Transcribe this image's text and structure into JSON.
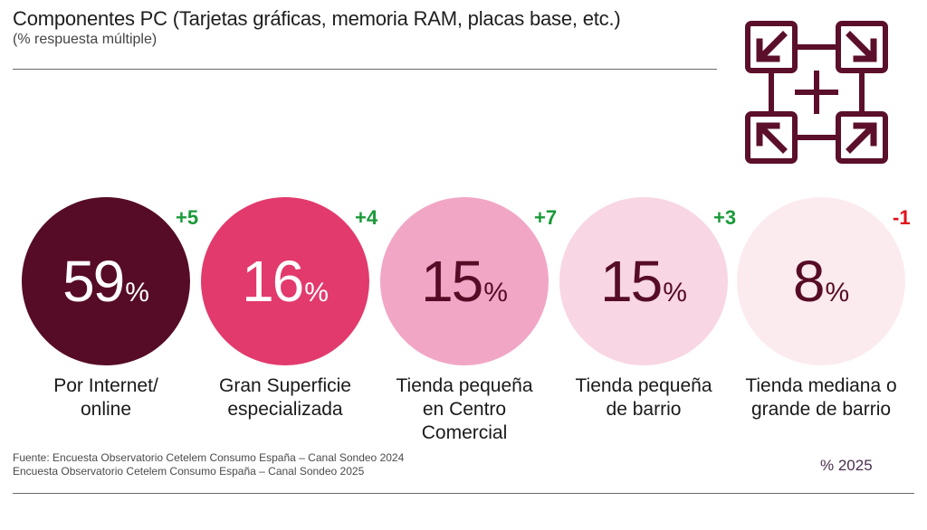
{
  "header": {
    "title": "Componentes PC (Tarjetas gráficas, memoria RAM, placas base, etc.)",
    "subtitle": "(% respuesta múltiple)"
  },
  "logo": {
    "icon": "four-arrows-grid-icon",
    "color": "#5b0f2b"
  },
  "chart_data": {
    "type": "bubble",
    "title": "Componentes PC (Tarjetas gráficas, memoria RAM, placas base, etc.)",
    "subtitle": "(% respuesta múltiple)",
    "unit": "%",
    "year_label": "% 2025",
    "categories": [
      "Por Internet/\nonline",
      "Gran Superficie\nespecializada",
      "Tienda pequeña\nen Centro\nComercial",
      "Tienda pequeña\nde barrio",
      "Tienda mediana o\ngrande de barrio"
    ],
    "values": [
      59,
      16,
      15,
      15,
      8
    ],
    "changes": [
      "+5",
      "+4",
      "+7",
      "+3",
      "-1"
    ],
    "circle_colors": [
      "#560c26",
      "#e23a6d",
      "#f2a6c6",
      "#f8d6e4",
      "#fcebee"
    ],
    "value_colors": [
      "#ffffff",
      "#ffffff",
      "#560c26",
      "#560c26",
      "#560c26"
    ],
    "change_colors": {
      "positive": "#1a9a3a",
      "negative": "#e0101a"
    }
  },
  "footer": {
    "source": "Fuente: Encuesta Observatorio Cetelem Consumo España – Canal Sondeo 2024\nEncuesta Observatorio Cetelem Consumo España – Canal Sondeo 2025",
    "year": "% 2025"
  }
}
